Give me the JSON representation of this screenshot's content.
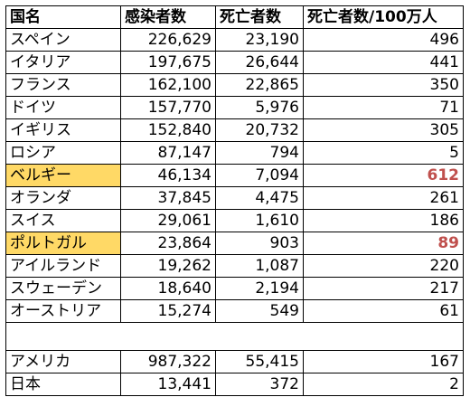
{
  "table": {
    "headers": [
      "国名",
      "感染者数",
      "死亡者数",
      "死亡者数/100万人"
    ],
    "rows": [
      {
        "country": "スペイン",
        "cases": "226,629",
        "deaths": "23,190",
        "per_million": "496"
      },
      {
        "country": "イタリア",
        "cases": "197,675",
        "deaths": "26,644",
        "per_million": "441"
      },
      {
        "country": "フランス",
        "cases": "162,100",
        "deaths": "22,865",
        "per_million": "350"
      },
      {
        "country": "ドイツ",
        "cases": "157,770",
        "deaths": "5,976",
        "per_million": "71"
      },
      {
        "country": "イギリス",
        "cases": "152,840",
        "deaths": "20,732",
        "per_million": "305"
      },
      {
        "country": "ロシア",
        "cases": "87,147",
        "deaths": "794",
        "per_million": "5"
      },
      {
        "country": "ベルギー",
        "cases": "46,134",
        "deaths": "7,094",
        "per_million": "612"
      },
      {
        "country": "オランダ",
        "cases": "37,845",
        "deaths": "4,475",
        "per_million": "261"
      },
      {
        "country": "スイス",
        "cases": "29,061",
        "deaths": "1,610",
        "per_million": "186"
      },
      {
        "country": "ポルトガル",
        "cases": "23,864",
        "deaths": "903",
        "per_million": "89"
      },
      {
        "country": "アイルランド",
        "cases": "19,262",
        "deaths": "1,087",
        "per_million": "220"
      },
      {
        "country": "スウェーデン",
        "cases": "18,640",
        "deaths": "2,194",
        "per_million": "217"
      },
      {
        "country": "オーストリア",
        "cases": "15,274",
        "deaths": "549",
        "per_million": "61"
      }
    ],
    "extra_rows": [
      {
        "country": "アメリカ",
        "cases": "987,322",
        "deaths": "55,415",
        "per_million": "167"
      },
      {
        "country": "日本",
        "cases": "13,441",
        "deaths": "372",
        "per_million": "2"
      }
    ]
  },
  "colors": {
    "highlight_fill": "#ffd966",
    "highlight_text": "#c0504d"
  }
}
